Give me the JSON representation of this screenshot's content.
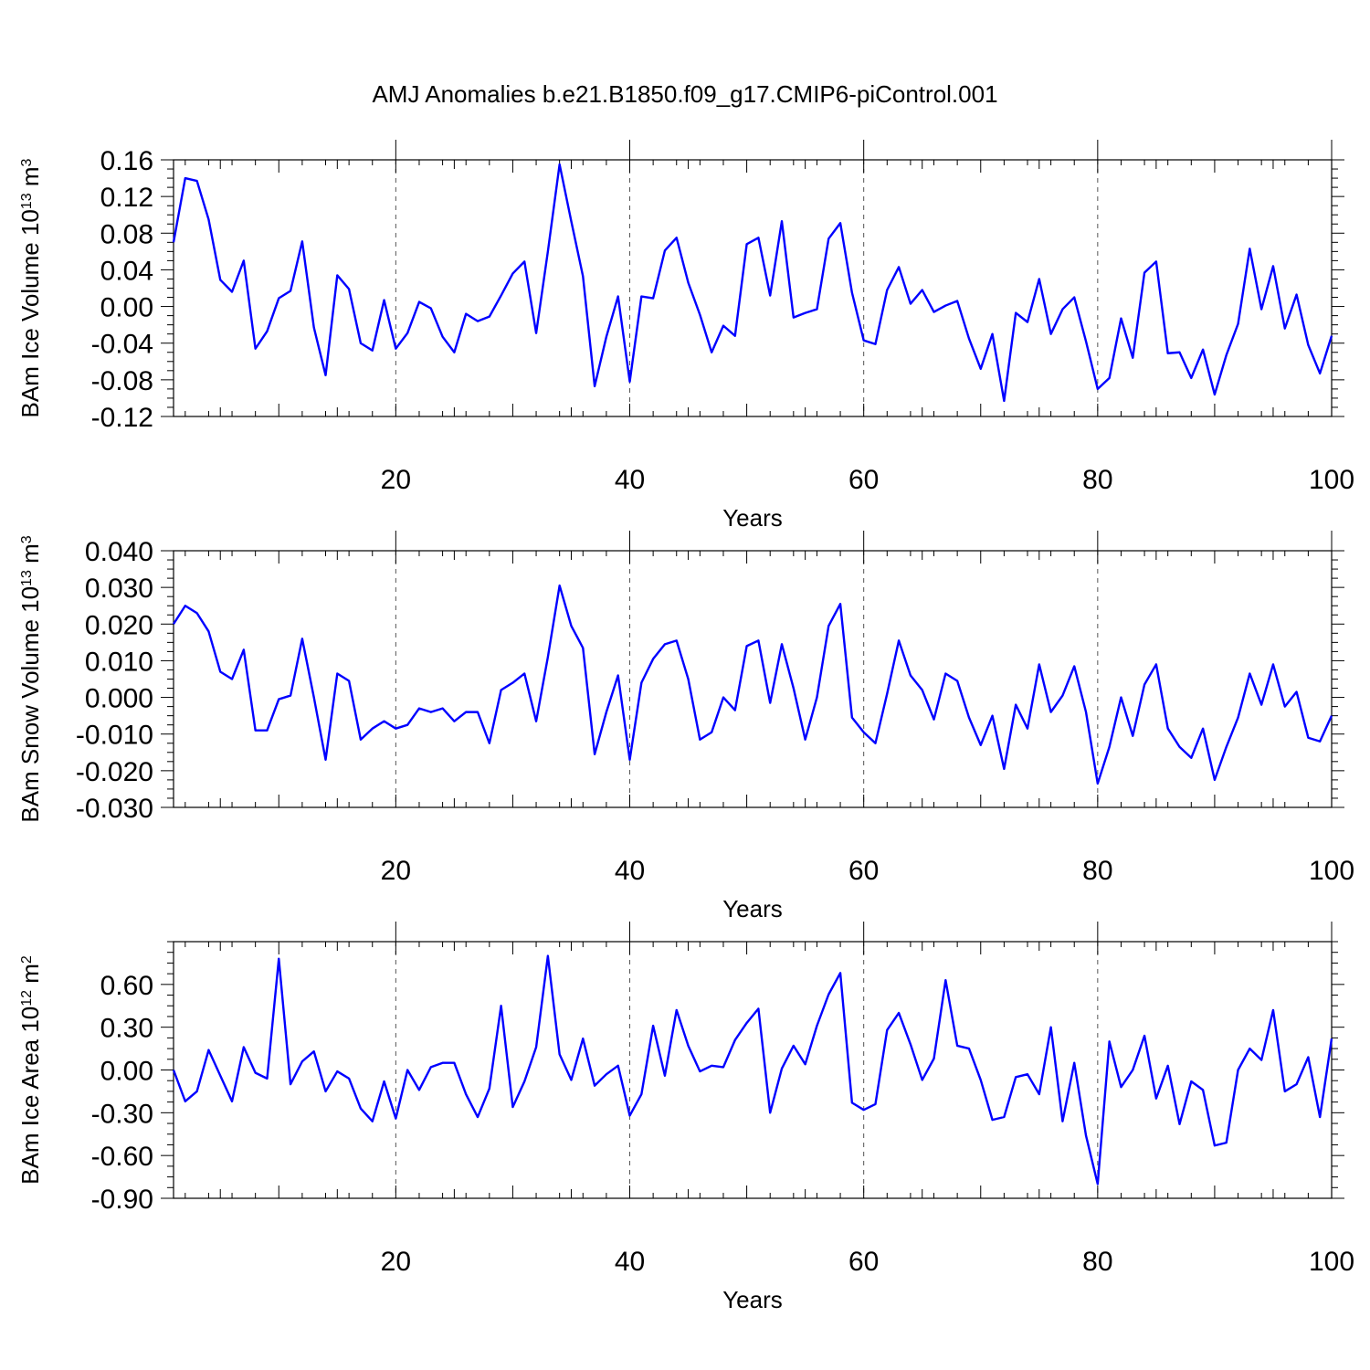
{
  "chart_data": {
    "title": "AMJ Anomalies b.e21.B1850.f09_g17.CMIP6-piControl.001",
    "x": [
      1,
      2,
      3,
      4,
      5,
      6,
      7,
      8,
      9,
      10,
      11,
      12,
      13,
      14,
      15,
      16,
      17,
      18,
      19,
      20,
      21,
      22,
      23,
      24,
      25,
      26,
      27,
      28,
      29,
      30,
      31,
      32,
      33,
      34,
      35,
      36,
      37,
      38,
      39,
      40,
      41,
      42,
      43,
      44,
      45,
      46,
      47,
      48,
      49,
      50,
      51,
      52,
      53,
      54,
      55,
      56,
      57,
      58,
      59,
      60,
      61,
      62,
      63,
      64,
      65,
      66,
      67,
      68,
      69,
      70,
      71,
      72,
      73,
      74,
      75,
      76,
      77,
      78,
      79,
      80,
      81,
      82,
      83,
      84,
      85,
      86,
      87,
      88,
      89,
      90,
      91,
      92,
      93,
      94,
      95,
      96,
      97,
      98,
      99,
      100
    ],
    "panels": [
      {
        "type": "line",
        "ylabel": "BAm Ice Volume 10",
        "ylabel_exp": "13",
        "ylabel_unit": " m",
        "ylabel_unit_exp": "3",
        "xlabel": "Years",
        "ylim": [
          -0.12,
          0.16
        ],
        "yticks": [
          -0.12,
          -0.08,
          -0.04,
          0.0,
          0.04,
          0.08,
          0.12,
          0.16
        ],
        "ytick_labels": [
          "-0.12",
          "-0.08",
          "-0.04",
          "0.00",
          "0.04",
          "0.08",
          "0.12",
          "0.16"
        ],
        "values": [
          0.07,
          0.14,
          0.137,
          0.095,
          0.029,
          0.016,
          0.05,
          -0.046,
          -0.027,
          0.009,
          0.017,
          0.071,
          -0.023,
          -0.075,
          0.034,
          0.019,
          -0.04,
          -0.048,
          0.007,
          -0.046,
          -0.029,
          0.005,
          -0.002,
          -0.033,
          -0.05,
          -0.008,
          -0.016,
          -0.011,
          0.012,
          0.036,
          0.049,
          -0.029,
          0.06,
          0.155,
          0.093,
          0.033,
          -0.087,
          -0.033,
          0.011,
          -0.082,
          0.011,
          0.009,
          0.061,
          0.075,
          0.026,
          -0.009,
          -0.05,
          -0.021,
          -0.032,
          0.068,
          0.075,
          0.012,
          0.093,
          -0.012,
          -0.007,
          -0.003,
          0.074,
          0.091,
          0.015,
          -0.037,
          -0.041,
          0.018,
          0.043,
          0.003,
          0.018,
          -0.006,
          0.001,
          0.006,
          -0.035,
          -0.068,
          -0.03,
          -0.103,
          -0.007,
          -0.017,
          0.03,
          -0.03,
          -0.003,
          0.01,
          -0.038,
          -0.09,
          -0.078,
          -0.013,
          -0.056,
          0.037,
          0.049,
          -0.051,
          -0.05,
          -0.078,
          -0.047,
          -0.096,
          -0.053,
          -0.019,
          0.063,
          -0.003,
          0.044,
          -0.024,
          0.013,
          -0.042,
          -0.073,
          -0.032
        ]
      },
      {
        "type": "line",
        "ylabel": "BAm Snow Volume 10",
        "ylabel_exp": "13",
        "ylabel_unit": " m",
        "ylabel_unit_exp": "3",
        "xlabel": "Years",
        "ylim": [
          -0.03,
          0.04
        ],
        "yticks": [
          -0.03,
          -0.02,
          -0.01,
          0.0,
          0.01,
          0.02,
          0.03,
          0.04
        ],
        "ytick_labels": [
          "-0.030",
          "-0.020",
          "-0.010",
          "0.000",
          "0.010",
          "0.020",
          "0.030",
          "0.040"
        ],
        "values": [
          0.02,
          0.025,
          0.023,
          0.018,
          0.007,
          0.005,
          0.013,
          -0.009,
          -0.009,
          -0.0005,
          0.0005,
          0.016,
          0.0,
          -0.017,
          0.0065,
          0.0045,
          -0.0115,
          -0.0085,
          -0.0065,
          -0.0085,
          -0.0075,
          -0.003,
          -0.004,
          -0.003,
          -0.0065,
          -0.004,
          -0.004,
          -0.0125,
          0.002,
          0.004,
          0.0065,
          -0.0065,
          0.011,
          0.0305,
          0.0195,
          0.0135,
          -0.0155,
          -0.004,
          0.006,
          -0.017,
          0.004,
          0.0105,
          0.0145,
          0.0155,
          0.005,
          -0.0115,
          -0.0095,
          0.0,
          -0.0035,
          0.014,
          0.0155,
          -0.0015,
          0.0145,
          0.0025,
          -0.0115,
          0.0,
          0.0195,
          0.0255,
          -0.0055,
          -0.0095,
          -0.0125,
          0.001,
          0.0155,
          0.006,
          0.002,
          -0.006,
          0.0065,
          0.0045,
          -0.0055,
          -0.013,
          -0.005,
          -0.0195,
          -0.002,
          -0.0085,
          0.009,
          -0.004,
          0.0005,
          0.0085,
          -0.004,
          -0.0235,
          -0.0135,
          0.0,
          -0.0105,
          0.0035,
          0.009,
          -0.0085,
          -0.0135,
          -0.0165,
          -0.0085,
          -0.0225,
          -0.0135,
          -0.0055,
          0.0065,
          -0.002,
          0.009,
          -0.0025,
          0.0015,
          -0.011,
          -0.012,
          -0.005
        ]
      },
      {
        "type": "line",
        "ylabel": "BAm Ice Area 10",
        "ylabel_exp": "12",
        "ylabel_unit": " m",
        "ylabel_unit_exp": "2",
        "xlabel": "Years",
        "ylim": [
          -0.9,
          0.9
        ],
        "yticks": [
          -0.9,
          -0.6,
          -0.3,
          0.0,
          0.3,
          0.6
        ],
        "ytick_labels": [
          "-0.90",
          "-0.60",
          "-0.30",
          "0.00",
          "0.30",
          "0.60"
        ],
        "values": [
          0.0,
          -0.22,
          -0.15,
          0.14,
          -0.04,
          -0.22,
          0.16,
          -0.02,
          -0.06,
          0.78,
          -0.1,
          0.06,
          0.13,
          -0.15,
          -0.01,
          -0.06,
          -0.27,
          -0.36,
          -0.08,
          -0.34,
          0.0,
          -0.14,
          0.02,
          0.05,
          0.05,
          -0.17,
          -0.33,
          -0.13,
          0.45,
          -0.26,
          -0.08,
          0.16,
          0.8,
          0.11,
          -0.07,
          0.22,
          -0.11,
          -0.03,
          0.03,
          -0.32,
          -0.17,
          0.31,
          -0.04,
          0.42,
          0.17,
          -0.01,
          0.03,
          0.02,
          0.21,
          0.33,
          0.43,
          -0.3,
          0.01,
          0.17,
          0.04,
          0.31,
          0.53,
          0.68,
          -0.23,
          -0.28,
          -0.24,
          0.28,
          0.4,
          0.18,
          -0.07,
          0.08,
          0.63,
          0.17,
          0.15,
          -0.07,
          -0.35,
          -0.33,
          -0.05,
          -0.03,
          -0.17,
          0.3,
          -0.36,
          0.05,
          -0.46,
          -0.8,
          0.2,
          -0.12,
          0.0,
          0.24,
          -0.2,
          0.03,
          -0.38,
          -0.08,
          -0.14,
          -0.53,
          -0.51,
          0.0,
          0.15,
          0.07,
          0.42,
          -0.15,
          -0.1,
          0.09,
          -0.33,
          0.22
        ]
      }
    ],
    "xlim": [
      1,
      100
    ],
    "xticks": [
      20,
      40,
      60,
      80,
      100
    ],
    "xtick_labels": [
      "20",
      "40",
      "60",
      "80",
      "100"
    ],
    "grid_x": [
      20,
      40,
      60,
      80
    ],
    "grid": "dashed vertical at major x ticks",
    "colors": {
      "series": "#0000ff",
      "grid": "#555555",
      "axes": "#000000"
    }
  }
}
